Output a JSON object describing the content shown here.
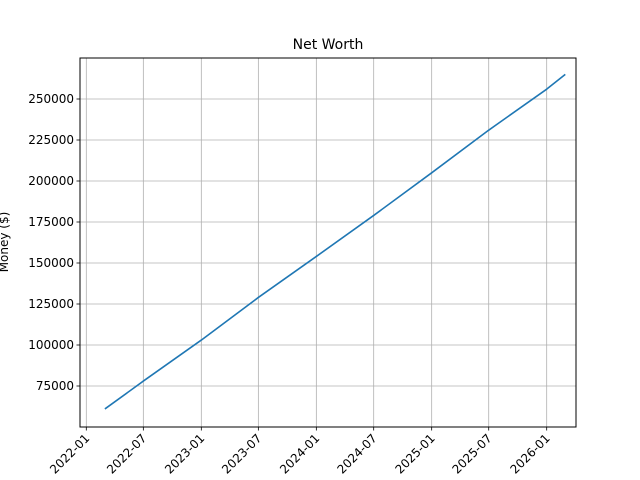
{
  "chart_data": {
    "type": "line",
    "title": "Net Worth",
    "xlabel": "",
    "ylabel": "Money ($)",
    "grid": true,
    "color": "#1f77b4",
    "x_ticks": [
      "2022-01",
      "2022-07",
      "2023-01",
      "2023-07",
      "2024-01",
      "2024-07",
      "2025-01",
      "2025-07",
      "2026-01"
    ],
    "y_ticks": [
      75000,
      100000,
      125000,
      150000,
      175000,
      200000,
      225000,
      250000
    ],
    "xlim": [
      "2021-12-12",
      "2026-04-04"
    ],
    "ylim": [
      50000,
      275000
    ],
    "series": [
      {
        "x": [
          "2022-03-01",
          "2022-07-01",
          "2023-01-01",
          "2023-07-01",
          "2024-01-01",
          "2024-07-01",
          "2025-01-01",
          "2025-07-01",
          "2026-01-01",
          "2026-03-01"
        ],
        "values": [
          61000,
          78000,
          103000,
          129000,
          154000,
          179000,
          205000,
          231000,
          256000,
          265000
        ]
      }
    ]
  }
}
